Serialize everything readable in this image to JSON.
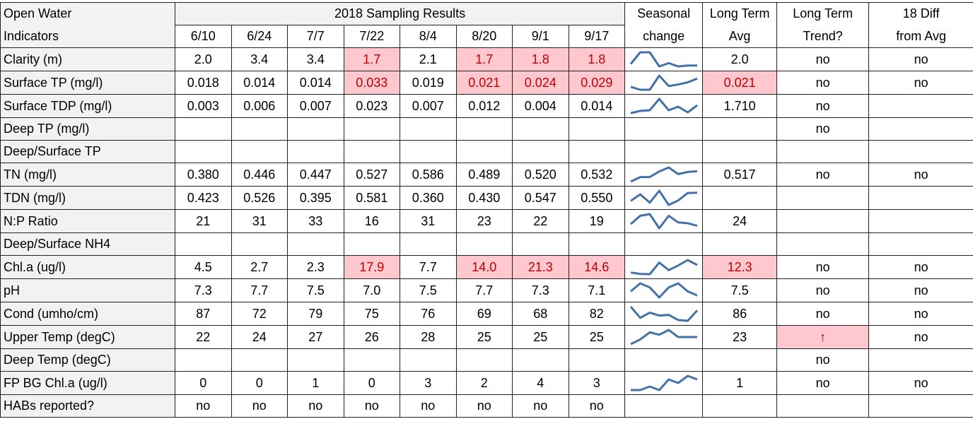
{
  "table": {
    "header": {
      "indicator": [
        "Open Water",
        "Indicators"
      ],
      "group": "2018 Sampling Results",
      "dates": [
        "6/10",
        "6/24",
        "7/7",
        "7/22",
        "8/4",
        "8/20",
        "9/1",
        "9/17"
      ],
      "seasonal": [
        "Seasonal",
        "change"
      ],
      "avg": [
        "Long Term",
        "Avg"
      ],
      "trend": [
        "Long Term",
        "Trend?"
      ],
      "diff": [
        "18 Diff",
        "from Avg"
      ]
    },
    "rows": [
      {
        "label": "Clarity (m)",
        "values": [
          "2.0",
          "3.4",
          "3.4",
          "1.7",
          "2.1",
          "1.7",
          "1.8",
          "1.8"
        ],
        "avg": "2.0",
        "trend": "no",
        "diff": "no",
        "highlight": [
          3,
          5,
          6,
          7
        ]
      },
      {
        "label": "Surface TP (mg/l)",
        "values": [
          "0.018",
          "0.014",
          "0.014",
          "0.033",
          "0.019",
          "0.021",
          "0.024",
          "0.029"
        ],
        "avg": "0.021",
        "trend": "no",
        "diff": "no",
        "highlight": [
          3,
          5,
          6,
          7,
          "avg"
        ]
      },
      {
        "label": "Surface TDP (mg/l)",
        "values": [
          "0.003",
          "0.006",
          "0.007",
          "0.023",
          "0.007",
          "0.012",
          "0.004",
          "0.014"
        ],
        "avg": "1.710",
        "trend": "no",
        "diff": null,
        "highlight": []
      },
      {
        "label": "Deep TP (mg/l)",
        "values": [
          null,
          null,
          null,
          null,
          null,
          null,
          null,
          null
        ],
        "avg": null,
        "trend": "no",
        "diff": null,
        "highlight": []
      },
      {
        "label": "Deep/Surface TP",
        "values": [
          null,
          null,
          null,
          null,
          null,
          null,
          null,
          null
        ],
        "avg": null,
        "trend": null,
        "diff": null,
        "highlight": []
      },
      {
        "label": "TN (mg/l)",
        "values": [
          "0.380",
          "0.446",
          "0.447",
          "0.527",
          "0.586",
          "0.489",
          "0.520",
          "0.532"
        ],
        "avg": "0.517",
        "trend": "no",
        "diff": "no",
        "highlight": []
      },
      {
        "label": "TDN (mg/l)",
        "values": [
          "0.423",
          "0.526",
          "0.395",
          "0.581",
          "0.360",
          "0.430",
          "0.547",
          "0.550"
        ],
        "avg": null,
        "trend": null,
        "diff": null,
        "highlight": []
      },
      {
        "label": "N:P Ratio",
        "values": [
          "21",
          "31",
          "33",
          "16",
          "31",
          "23",
          "22",
          "19"
        ],
        "avg": "24",
        "trend": null,
        "diff": null,
        "highlight": []
      },
      {
        "label": "Deep/Surface NH4",
        "values": [
          null,
          null,
          null,
          null,
          null,
          null,
          null,
          null
        ],
        "avg": null,
        "trend": null,
        "diff": null,
        "highlight": []
      },
      {
        "label": "Chl.a (ug/l)",
        "values": [
          "4.5",
          "2.7",
          "2.3",
          "17.9",
          "7.7",
          "14.0",
          "21.3",
          "14.6"
        ],
        "avg": "12.3",
        "trend": "no",
        "diff": "no",
        "highlight": [
          3,
          5,
          6,
          7,
          "avg"
        ]
      },
      {
        "label": "pH",
        "values": [
          "7.3",
          "7.7",
          "7.5",
          "7.0",
          "7.5",
          "7.7",
          "7.3",
          "7.1"
        ],
        "avg": "7.5",
        "trend": "no",
        "diff": "no",
        "highlight": []
      },
      {
        "label": "Cond (umho/cm)",
        "values": [
          "87",
          "72",
          "79",
          "75",
          "76",
          "69",
          "68",
          "82"
        ],
        "avg": "86",
        "trend": "no",
        "diff": "no",
        "highlight": []
      },
      {
        "label": "Upper Temp (degC)",
        "values": [
          "22",
          "24",
          "27",
          "26",
          "28",
          "25",
          "25",
          "25"
        ],
        "avg": "23",
        "trend": "↑",
        "diff": "no",
        "highlight": [
          "trend"
        ]
      },
      {
        "label": "Deep Temp (degC)",
        "values": [
          null,
          null,
          null,
          null,
          null,
          null,
          null,
          null
        ],
        "avg": null,
        "trend": "no",
        "diff": null,
        "highlight": []
      },
      {
        "label": "FP BG Chl.a (ug/l)",
        "values": [
          "0",
          "0",
          "1",
          "0",
          "3",
          "2",
          "4",
          "3"
        ],
        "avg": "1",
        "trend": "no",
        "diff": "no",
        "highlight": []
      },
      {
        "label": "HABs reported?",
        "values": [
          "no",
          "no",
          "no",
          "no",
          "no",
          "no",
          "no",
          "no"
        ],
        "avg": null,
        "trend": null,
        "diff": null,
        "highlight": []
      }
    ]
  }
}
